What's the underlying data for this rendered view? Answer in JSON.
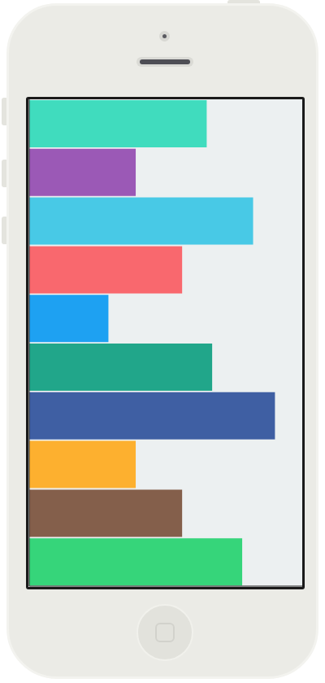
{
  "chart_data": {
    "type": "bar",
    "orientation": "horizontal",
    "categories": [
      null,
      null,
      null,
      null,
      null,
      null,
      null,
      null,
      null,
      null
    ],
    "values": [
      65,
      39,
      82,
      56,
      29,
      67,
      90,
      39,
      56,
      78
    ],
    "colors": [
      "#40dcbe",
      "#9b59b6",
      "#48c9e6",
      "#f9686e",
      "#1ea1f2",
      "#21a68a",
      "#3f5fa3",
      "#fdb02f",
      "#845f4b",
      "#36d57a"
    ],
    "xlim": [
      0,
      100
    ],
    "tick_labels": false
  }
}
